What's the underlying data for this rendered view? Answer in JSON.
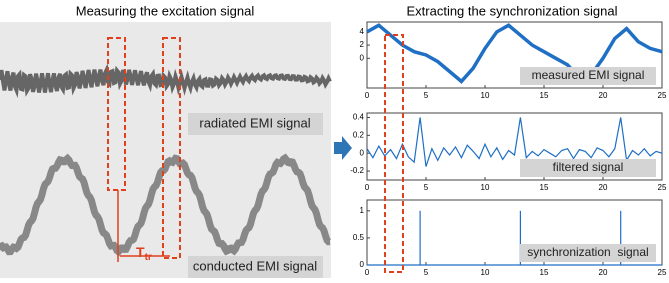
{
  "left_panel": {
    "title": "Measuring the excitation signal",
    "radiated_label": "radiated EMI signal",
    "conducted_label": "conducted EMI signal",
    "interval_main": "T",
    "interval_sub": "tr"
  },
  "right_title": "Extracting the synchronization signal",
  "chart_data": [
    {
      "type": "line",
      "annotation": "measured EMI signal",
      "color": "#1f6fc5",
      "x": [
        0,
        1,
        2,
        3,
        4,
        5,
        6,
        7,
        8,
        9,
        10,
        11,
        12,
        13,
        14,
        15,
        16,
        17,
        18,
        19,
        20,
        21,
        22,
        23,
        24,
        25
      ],
      "values": [
        4,
        5,
        3.5,
        2,
        1,
        0.5,
        -0.5,
        -2,
        -3.5,
        -1.5,
        1.5,
        4,
        5,
        3.5,
        2,
        1,
        0,
        -1,
        -3,
        -2.5,
        0,
        3,
        4.5,
        2.5,
        1.5,
        1
      ],
      "xlim": [
        0,
        25
      ],
      "ylim": [
        -4.5,
        5.5
      ],
      "xticks": [
        0,
        5,
        10,
        15,
        20,
        25
      ],
      "yticks": [
        0,
        2,
        4
      ]
    },
    {
      "type": "line",
      "annotation": "filtered signal",
      "color": "#1f6fc5",
      "x": [
        0,
        0.5,
        1,
        1.5,
        2,
        2.5,
        3,
        3.5,
        4,
        4.5,
        5,
        5.5,
        6,
        6.5,
        7,
        7.5,
        8,
        8.5,
        9,
        9.5,
        10,
        10.5,
        11,
        11.5,
        12,
        12.5,
        13,
        13.5,
        14,
        14.5,
        15,
        15.5,
        16,
        16.5,
        17,
        17.5,
        18,
        18.5,
        19,
        19.5,
        20,
        20.5,
        21,
        21.5,
        22,
        22.5,
        23,
        23.5,
        24,
        24.5,
        25
      ],
      "values": [
        0.05,
        -0.05,
        0.08,
        -0.03,
        0.04,
        -0.06,
        0.1,
        -0.04,
        -0.1,
        0.4,
        -0.15,
        0.05,
        -0.08,
        0.06,
        -0.02,
        0.07,
        -0.05,
        0.09,
        0.02,
        -0.06,
        0.1,
        -0.04,
        0.06,
        -0.07,
        0.03,
        -0.02,
        0.4,
        -0.05,
        0.02,
        -0.03,
        0.04,
        0.0,
        -0.04,
        0.03,
        0.05,
        -0.06,
        0.04,
        0.02,
        -0.05,
        0.06,
        0.03,
        -0.04,
        0.05,
        0.4,
        -0.08,
        0.03,
        -0.02,
        0.05,
        -0.03,
        0.02,
        0.0
      ],
      "xlim": [
        0,
        25
      ],
      "ylim": [
        -0.3,
        0.45
      ],
      "xticks": [
        0,
        5,
        10,
        15,
        20,
        25
      ],
      "yticks": [
        -0.2,
        0,
        0.2,
        0.4
      ]
    },
    {
      "type": "line",
      "annotation": "synchronization  signal",
      "color": "#1f6fc5",
      "x": [
        0,
        4.5,
        4.5,
        4.5,
        13,
        13,
        13,
        21.5,
        21.5,
        21.5,
        25
      ],
      "values": [
        0,
        0,
        1,
        0,
        0,
        1,
        0,
        0,
        1,
        0,
        0
      ],
      "xlim": [
        0,
        25
      ],
      "ylim": [
        0,
        1.2
      ],
      "xticks": [
        0,
        5,
        10,
        15,
        20,
        25
      ],
      "yticks": [
        0,
        0.5,
        1
      ]
    }
  ]
}
